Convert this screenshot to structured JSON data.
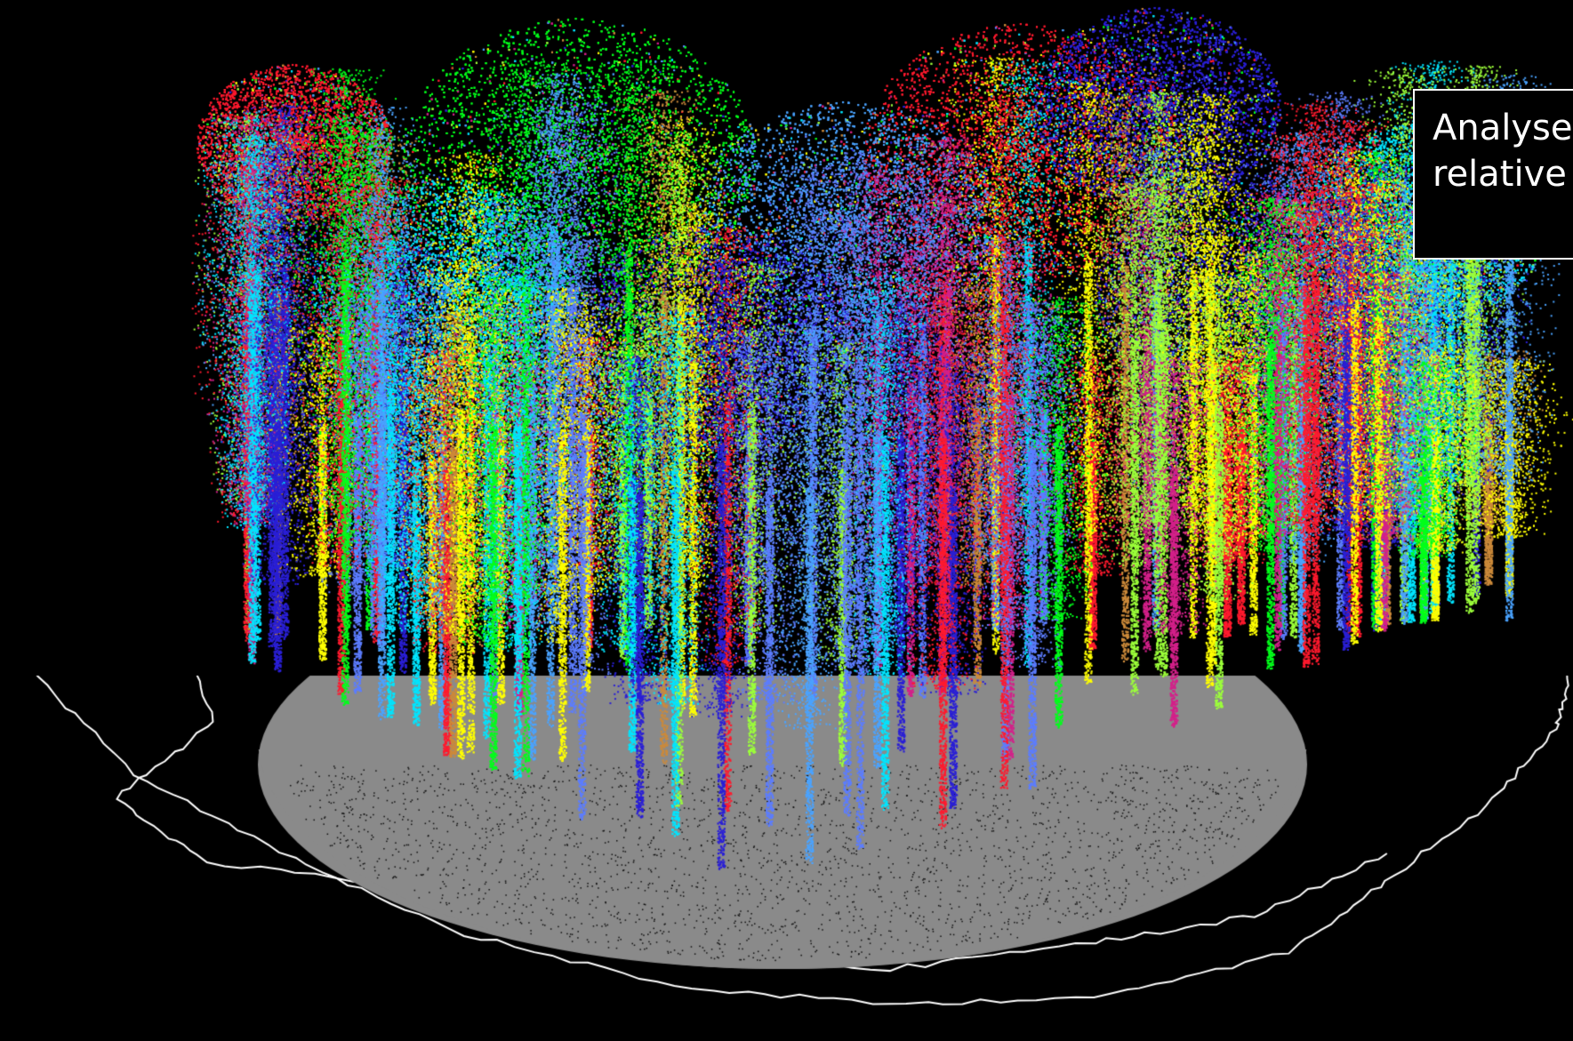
{
  "scene": {
    "subject": "tree-point-cloud",
    "background_color": "#000000",
    "ground_color": "#8a8a8a",
    "outline_color": "#ffffff",
    "palette": [
      "#ff1a2e",
      "#00ff1a",
      "#ffff00",
      "#00e5ff",
      "#2a1fd6",
      "#4aa3ff",
      "#9cff3a",
      "#d4208a",
      "#cc8a3a",
      "#5c7dff"
    ]
  },
  "label": {
    "line1": "Analyse",
    "line2": "relative"
  }
}
